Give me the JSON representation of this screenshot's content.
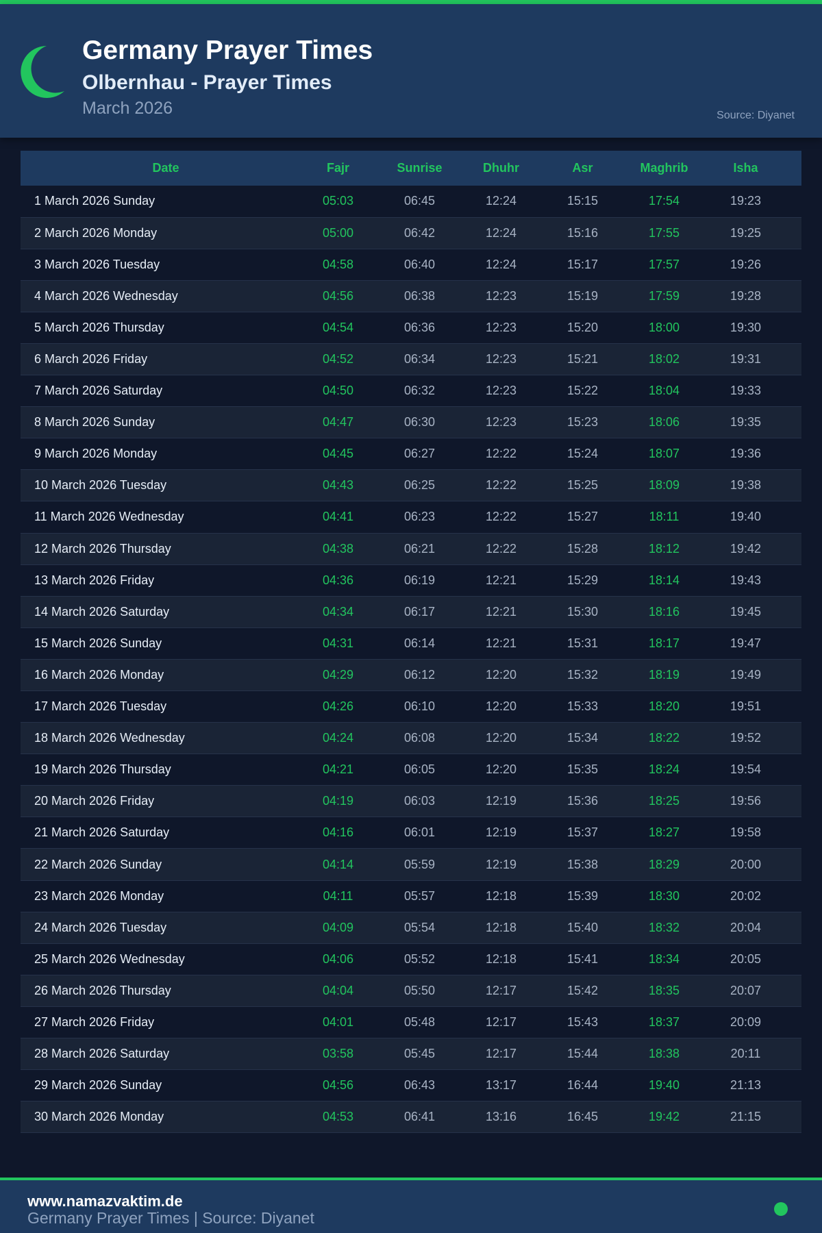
{
  "colors": {
    "accent": "#22c55e",
    "header_bg": "#1e3a5f",
    "page_bg": "#0f172a"
  },
  "header": {
    "icon": "crescent-moon-icon",
    "title": "Germany Prayer Times",
    "subtitle": "Olbernhau - Prayer Times",
    "month": "March 2026",
    "source": "Source: Diyanet"
  },
  "table": {
    "columns": [
      "Date",
      "Fajr",
      "Sunrise",
      "Dhuhr",
      "Asr",
      "Maghrib",
      "Isha"
    ],
    "rows": [
      [
        "1 March 2026 Sunday",
        "05:03",
        "06:45",
        "12:24",
        "15:15",
        "17:54",
        "19:23"
      ],
      [
        "2 March 2026 Monday",
        "05:00",
        "06:42",
        "12:24",
        "15:16",
        "17:55",
        "19:25"
      ],
      [
        "3 March 2026 Tuesday",
        "04:58",
        "06:40",
        "12:24",
        "15:17",
        "17:57",
        "19:26"
      ],
      [
        "4 March 2026 Wednesday",
        "04:56",
        "06:38",
        "12:23",
        "15:19",
        "17:59",
        "19:28"
      ],
      [
        "5 March 2026 Thursday",
        "04:54",
        "06:36",
        "12:23",
        "15:20",
        "18:00",
        "19:30"
      ],
      [
        "6 March 2026 Friday",
        "04:52",
        "06:34",
        "12:23",
        "15:21",
        "18:02",
        "19:31"
      ],
      [
        "7 March 2026 Saturday",
        "04:50",
        "06:32",
        "12:23",
        "15:22",
        "18:04",
        "19:33"
      ],
      [
        "8 March 2026 Sunday",
        "04:47",
        "06:30",
        "12:23",
        "15:23",
        "18:06",
        "19:35"
      ],
      [
        "9 March 2026 Monday",
        "04:45",
        "06:27",
        "12:22",
        "15:24",
        "18:07",
        "19:36"
      ],
      [
        "10 March 2026 Tuesday",
        "04:43",
        "06:25",
        "12:22",
        "15:25",
        "18:09",
        "19:38"
      ],
      [
        "11 March 2026 Wednesday",
        "04:41",
        "06:23",
        "12:22",
        "15:27",
        "18:11",
        "19:40"
      ],
      [
        "12 March 2026 Thursday",
        "04:38",
        "06:21",
        "12:22",
        "15:28",
        "18:12",
        "19:42"
      ],
      [
        "13 March 2026 Friday",
        "04:36",
        "06:19",
        "12:21",
        "15:29",
        "18:14",
        "19:43"
      ],
      [
        "14 March 2026 Saturday",
        "04:34",
        "06:17",
        "12:21",
        "15:30",
        "18:16",
        "19:45"
      ],
      [
        "15 March 2026 Sunday",
        "04:31",
        "06:14",
        "12:21",
        "15:31",
        "18:17",
        "19:47"
      ],
      [
        "16 March 2026 Monday",
        "04:29",
        "06:12",
        "12:20",
        "15:32",
        "18:19",
        "19:49"
      ],
      [
        "17 March 2026 Tuesday",
        "04:26",
        "06:10",
        "12:20",
        "15:33",
        "18:20",
        "19:51"
      ],
      [
        "18 March 2026 Wednesday",
        "04:24",
        "06:08",
        "12:20",
        "15:34",
        "18:22",
        "19:52"
      ],
      [
        "19 March 2026 Thursday",
        "04:21",
        "06:05",
        "12:20",
        "15:35",
        "18:24",
        "19:54"
      ],
      [
        "20 March 2026 Friday",
        "04:19",
        "06:03",
        "12:19",
        "15:36",
        "18:25",
        "19:56"
      ],
      [
        "21 March 2026 Saturday",
        "04:16",
        "06:01",
        "12:19",
        "15:37",
        "18:27",
        "19:58"
      ],
      [
        "22 March 2026 Sunday",
        "04:14",
        "05:59",
        "12:19",
        "15:38",
        "18:29",
        "20:00"
      ],
      [
        "23 March 2026 Monday",
        "04:11",
        "05:57",
        "12:18",
        "15:39",
        "18:30",
        "20:02"
      ],
      [
        "24 March 2026 Tuesday",
        "04:09",
        "05:54",
        "12:18",
        "15:40",
        "18:32",
        "20:04"
      ],
      [
        "25 March 2026 Wednesday",
        "04:06",
        "05:52",
        "12:18",
        "15:41",
        "18:34",
        "20:05"
      ],
      [
        "26 March 2026 Thursday",
        "04:04",
        "05:50",
        "12:17",
        "15:42",
        "18:35",
        "20:07"
      ],
      [
        "27 March 2026 Friday",
        "04:01",
        "05:48",
        "12:17",
        "15:43",
        "18:37",
        "20:09"
      ],
      [
        "28 March 2026 Saturday",
        "03:58",
        "05:45",
        "12:17",
        "15:44",
        "18:38",
        "20:11"
      ],
      [
        "29 March 2026 Sunday",
        "04:56",
        "06:43",
        "13:17",
        "16:44",
        "19:40",
        "21:13"
      ],
      [
        "30 March 2026 Monday",
        "04:53",
        "06:41",
        "13:16",
        "16:45",
        "19:42",
        "21:15"
      ]
    ]
  },
  "footer": {
    "site": "www.namazvaktim.de",
    "text": "Germany Prayer Times | Source: Diyanet"
  }
}
